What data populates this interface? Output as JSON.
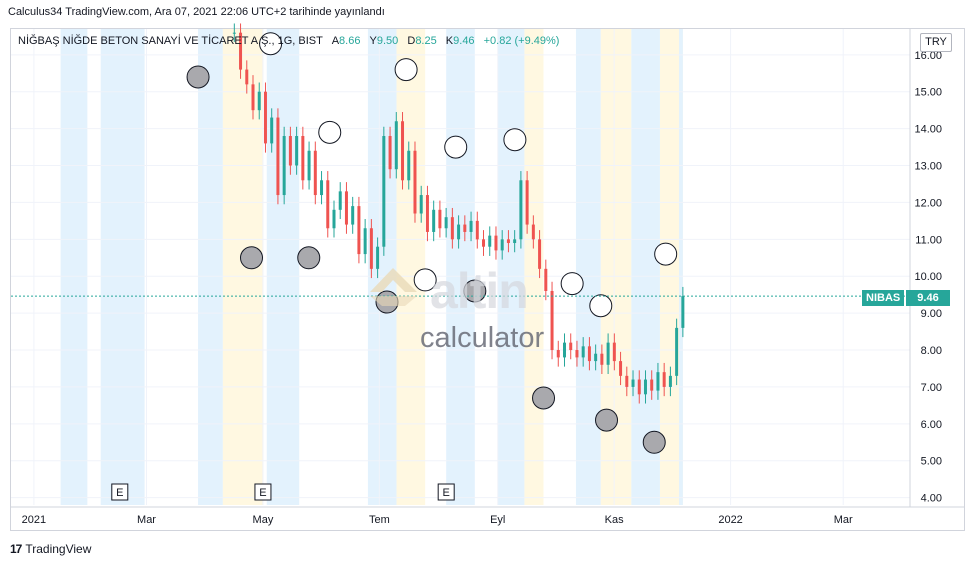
{
  "header": {
    "caption": "Calculus34 TradingView.com, Ara 07, 2021 22:06 UTC+2 tarihinde yayınlandı"
  },
  "legend": {
    "symbol": "NİĞBAŞ NİĞDE BETON SANAYİ VE TİCARET A.Ş., 1G, BIST",
    "open_label": "A",
    "open": "8.66",
    "high_label": "Y",
    "high": "9.50",
    "low_label": "D",
    "low": "8.25",
    "close_label": "K",
    "close": "9.46",
    "change": "+0.82 (+9.49%)"
  },
  "currency_badge": "TRY",
  "price_tag": {
    "ticker": "NIBAS",
    "value": "9.46"
  },
  "watermark": {
    "brand": "altin",
    "sub": "calculator"
  },
  "footer": {
    "brand": "TradingView",
    "logo": "17"
  },
  "colors": {
    "up": "#26a69a",
    "down": "#ef5350",
    "band_blue": "#e3f2fd",
    "band_yellow": "#fff8e1"
  },
  "chart_data": {
    "type": "candlestick",
    "currency": "TRY",
    "ylim": [
      3.8,
      16.7
    ],
    "y_ticks": [
      "4.00",
      "5.00",
      "6.00",
      "7.00",
      "8.00",
      "9.00",
      "10.00",
      "11.00",
      "12.00",
      "13.00",
      "14.00",
      "15.00",
      "16.00"
    ],
    "x_ticks": [
      "2021",
      "Mar",
      "May",
      "Tem",
      "Eyl",
      "Kas",
      "2022",
      "Mar"
    ],
    "event_markers": [
      "E",
      "E",
      "E"
    ],
    "last_price": 9.46,
    "series": [
      {
        "close": [
          16.6,
          15.6,
          15.2,
          14.5,
          15.0,
          13.6,
          14.3,
          12.2,
          13.8,
          13.0,
          13.8,
          12.6,
          13.4,
          12.2,
          12.6,
          11.3,
          11.8,
          12.3,
          11.4,
          11.9,
          10.6,
          11.3,
          10.2,
          10.8,
          13.8,
          12.9,
          14.2,
          12.6,
          13.4,
          11.7,
          12.2,
          11.2,
          11.8,
          11.3,
          11.6,
          11.0,
          11.4,
          11.2,
          11.5,
          11.0,
          10.8,
          11.1,
          10.7,
          11.0,
          10.9,
          11.0,
          12.6,
          11.4,
          11.0,
          10.2,
          9.6,
          8.0,
          7.8,
          8.2,
          8.0,
          7.8,
          8.1,
          7.7,
          7.9,
          7.6,
          8.2,
          7.7,
          7.3,
          7.0,
          7.2,
          6.8,
          7.2,
          6.9,
          7.4,
          7.0,
          7.3,
          8.6,
          9.46
        ]
      }
    ],
    "markers": {
      "up_circles": [
        {
          "x": "2021-06-05",
          "y": 13.9
        },
        {
          "x": "2021-07-15",
          "y": 15.6
        },
        {
          "x": "2021-08-10",
          "y": 13.5
        },
        {
          "x": "2021-09-10",
          "y": 13.7
        },
        {
          "x": "2021-05-05",
          "y": 16.3
        },
        {
          "x": "2021-10-10",
          "y": 9.8
        },
        {
          "x": "2021-10-25",
          "y": 9.2
        },
        {
          "x": "2021-11-28",
          "y": 10.6
        },
        {
          "x": "2021-07-25",
          "y": 9.9
        }
      ],
      "down_circles": [
        {
          "x": "2021-03-28",
          "y": 15.4
        },
        {
          "x": "2021-04-25",
          "y": 10.5
        },
        {
          "x": "2021-05-25",
          "y": 10.5
        },
        {
          "x": "2021-07-05",
          "y": 9.3
        },
        {
          "x": "2021-08-20",
          "y": 9.6
        },
        {
          "x": "2021-09-25",
          "y": 6.7
        },
        {
          "x": "2021-10-28",
          "y": 6.1
        },
        {
          "x": "2021-11-22",
          "y": 5.5
        }
      ]
    }
  }
}
